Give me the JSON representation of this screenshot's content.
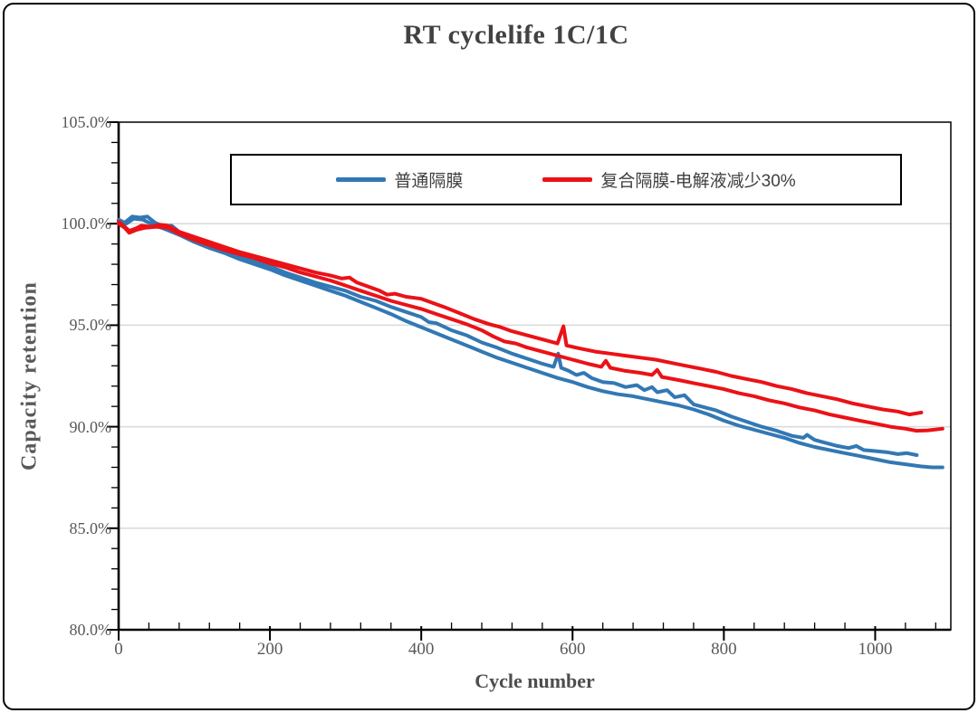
{
  "page": {
    "background": "#ffffff",
    "frame_border_color": "#000000"
  },
  "chart_data": {
    "type": "line",
    "title": "RT cyclelife 1C/1C",
    "xlabel": "Cycle number",
    "ylabel": "Capacity retention",
    "x_range": [
      0,
      1100
    ],
    "y_range_percent": [
      80,
      105
    ],
    "x_major_ticks": [
      0,
      200,
      400,
      600,
      800,
      1000
    ],
    "x_minor_unit": 40,
    "y_major_unit": 5,
    "y_minor_unit": 1,
    "y_tick_labels": [
      "105.0%",
      "100.0%",
      "95.0%",
      "90.0%",
      "85.0%",
      "80.0%"
    ],
    "grid": "horizontal-major",
    "gridline_color": "#d9d9d9",
    "axis_color": "#000000",
    "tick_label_color": "#595959",
    "title_color": "#424242",
    "legend_position": "top-center-inside",
    "series": [
      {
        "name": "普通隔膜",
        "color": "#3278b4",
        "curves": [
          [
            [
              0,
              100.2
            ],
            [
              8,
              100.05
            ],
            [
              18,
              100.35
            ],
            [
              28,
              100.3
            ],
            [
              38,
              100.35
            ],
            [
              48,
              100.05
            ],
            [
              60,
              99.85
            ],
            [
              70,
              99.9
            ],
            [
              80,
              99.6
            ],
            [
              100,
              99.25
            ],
            [
              120,
              98.95
            ],
            [
              140,
              98.7
            ],
            [
              160,
              98.4
            ],
            [
              180,
              98.15
            ],
            [
              200,
              97.9
            ],
            [
              220,
              97.6
            ],
            [
              240,
              97.35
            ],
            [
              260,
              97.1
            ],
            [
              280,
              96.9
            ],
            [
              300,
              96.7
            ],
            [
              320,
              96.4
            ],
            [
              340,
              96.2
            ],
            [
              360,
              95.9
            ],
            [
              380,
              95.65
            ],
            [
              400,
              95.4
            ],
            [
              410,
              95.15
            ],
            [
              420,
              95.1
            ],
            [
              440,
              94.75
            ],
            [
              460,
              94.5
            ],
            [
              480,
              94.15
            ],
            [
              500,
              93.9
            ],
            [
              520,
              93.6
            ],
            [
              540,
              93.35
            ],
            [
              560,
              93.1
            ],
            [
              575,
              92.95
            ],
            [
              581,
              93.6
            ],
            [
              585,
              92.9
            ],
            [
              595,
              92.75
            ],
            [
              605,
              92.55
            ],
            [
              615,
              92.65
            ],
            [
              625,
              92.4
            ],
            [
              640,
              92.2
            ],
            [
              655,
              92.15
            ],
            [
              670,
              91.95
            ],
            [
              685,
              92.05
            ],
            [
              695,
              91.8
            ],
            [
              705,
              91.95
            ],
            [
              712,
              91.7
            ],
            [
              725,
              91.8
            ],
            [
              735,
              91.45
            ],
            [
              748,
              91.55
            ],
            [
              760,
              91.1
            ],
            [
              775,
              90.95
            ],
            [
              790,
              90.8
            ],
            [
              810,
              90.5
            ],
            [
              830,
              90.25
            ],
            [
              850,
              90.0
            ],
            [
              870,
              89.8
            ],
            [
              890,
              89.55
            ],
            [
              905,
              89.45
            ],
            [
              910,
              89.6
            ],
            [
              920,
              89.35
            ],
            [
              935,
              89.2
            ],
            [
              950,
              89.05
            ],
            [
              965,
              88.95
            ],
            [
              975,
              89.05
            ],
            [
              985,
              88.85
            ],
            [
              1000,
              88.8
            ],
            [
              1015,
              88.75
            ],
            [
              1030,
              88.65
            ],
            [
              1042,
              88.7
            ],
            [
              1055,
              88.6
            ]
          ],
          [
            [
              0,
              100.15
            ],
            [
              10,
              100.0
            ],
            [
              20,
              100.25
            ],
            [
              32,
              100.2
            ],
            [
              45,
              99.95
            ],
            [
              60,
              99.75
            ],
            [
              80,
              99.45
            ],
            [
              100,
              99.1
            ],
            [
              120,
              98.8
            ],
            [
              140,
              98.55
            ],
            [
              160,
              98.25
            ],
            [
              180,
              98.0
            ],
            [
              200,
              97.75
            ],
            [
              220,
              97.45
            ],
            [
              240,
              97.2
            ],
            [
              260,
              96.95
            ],
            [
              280,
              96.7
            ],
            [
              300,
              96.45
            ],
            [
              320,
              96.15
            ],
            [
              340,
              95.85
            ],
            [
              360,
              95.55
            ],
            [
              380,
              95.2
            ],
            [
              400,
              94.9
            ],
            [
              420,
              94.6
            ],
            [
              440,
              94.3
            ],
            [
              460,
              94.0
            ],
            [
              480,
              93.7
            ],
            [
              500,
              93.4
            ],
            [
              520,
              93.15
            ],
            [
              540,
              92.9
            ],
            [
              560,
              92.65
            ],
            [
              580,
              92.4
            ],
            [
              600,
              92.2
            ],
            [
              620,
              91.95
            ],
            [
              640,
              91.75
            ],
            [
              660,
              91.6
            ],
            [
              680,
              91.5
            ],
            [
              700,
              91.35
            ],
            [
              720,
              91.2
            ],
            [
              740,
              91.05
            ],
            [
              760,
              90.85
            ],
            [
              780,
              90.6
            ],
            [
              800,
              90.3
            ],
            [
              820,
              90.05
            ],
            [
              840,
              89.85
            ],
            [
              860,
              89.65
            ],
            [
              880,
              89.45
            ],
            [
              900,
              89.2
            ],
            [
              920,
              89.0
            ],
            [
              940,
              88.85
            ],
            [
              960,
              88.7
            ],
            [
              980,
              88.55
            ],
            [
              1000,
              88.4
            ],
            [
              1020,
              88.25
            ],
            [
              1040,
              88.15
            ],
            [
              1060,
              88.05
            ],
            [
              1075,
              88.0
            ],
            [
              1089,
              88.0
            ]
          ]
        ]
      },
      {
        "name": "复合隔膜-电解液减少30%",
        "color": "#ea1217",
        "curves": [
          [
            [
              0,
              100.1
            ],
            [
              8,
              99.85
            ],
            [
              14,
              99.65
            ],
            [
              22,
              99.75
            ],
            [
              30,
              99.9
            ],
            [
              42,
              99.85
            ],
            [
              55,
              99.95
            ],
            [
              65,
              99.9
            ],
            [
              80,
              99.6
            ],
            [
              100,
              99.35
            ],
            [
              120,
              99.1
            ],
            [
              140,
              98.85
            ],
            [
              160,
              98.6
            ],
            [
              180,
              98.4
            ],
            [
              200,
              98.2
            ],
            [
              220,
              98.0
            ],
            [
              240,
              97.8
            ],
            [
              260,
              97.6
            ],
            [
              280,
              97.45
            ],
            [
              295,
              97.3
            ],
            [
              305,
              97.35
            ],
            [
              315,
              97.1
            ],
            [
              330,
              96.9
            ],
            [
              345,
              96.7
            ],
            [
              355,
              96.5
            ],
            [
              365,
              96.55
            ],
            [
              380,
              96.4
            ],
            [
              400,
              96.3
            ],
            [
              415,
              96.1
            ],
            [
              430,
              95.9
            ],
            [
              450,
              95.6
            ],
            [
              470,
              95.3
            ],
            [
              490,
              95.05
            ],
            [
              505,
              94.9
            ],
            [
              520,
              94.7
            ],
            [
              540,
              94.5
            ],
            [
              560,
              94.3
            ],
            [
              580,
              94.1
            ],
            [
              588,
              94.95
            ],
            [
              592,
              94.0
            ],
            [
              610,
              93.85
            ],
            [
              630,
              93.7
            ],
            [
              650,
              93.6
            ],
            [
              670,
              93.5
            ],
            [
              690,
              93.4
            ],
            [
              710,
              93.3
            ],
            [
              730,
              93.15
            ],
            [
              750,
              93.0
            ],
            [
              770,
              92.85
            ],
            [
              790,
              92.7
            ],
            [
              810,
              92.5
            ],
            [
              830,
              92.35
            ],
            [
              850,
              92.2
            ],
            [
              870,
              92.0
            ],
            [
              890,
              91.85
            ],
            [
              910,
              91.65
            ],
            [
              930,
              91.5
            ],
            [
              950,
              91.35
            ],
            [
              970,
              91.15
            ],
            [
              990,
              91.0
            ],
            [
              1010,
              90.85
            ],
            [
              1030,
              90.75
            ],
            [
              1045,
              90.6
            ],
            [
              1061,
              90.7
            ]
          ],
          [
            [
              0,
              100.0
            ],
            [
              8,
              99.8
            ],
            [
              14,
              99.55
            ],
            [
              24,
              99.7
            ],
            [
              35,
              99.8
            ],
            [
              50,
              99.85
            ],
            [
              65,
              99.8
            ],
            [
              80,
              99.5
            ],
            [
              100,
              99.2
            ],
            [
              120,
              98.95
            ],
            [
              140,
              98.7
            ],
            [
              160,
              98.5
            ],
            [
              180,
              98.3
            ],
            [
              200,
              98.05
            ],
            [
              220,
              97.85
            ],
            [
              240,
              97.6
            ],
            [
              260,
              97.4
            ],
            [
              280,
              97.2
            ],
            [
              300,
              96.95
            ],
            [
              320,
              96.7
            ],
            [
              340,
              96.45
            ],
            [
              360,
              96.2
            ],
            [
              380,
              96.0
            ],
            [
              400,
              95.8
            ],
            [
              420,
              95.55
            ],
            [
              440,
              95.3
            ],
            [
              460,
              95.05
            ],
            [
              480,
              94.75
            ],
            [
              495,
              94.45
            ],
            [
              510,
              94.2
            ],
            [
              525,
              94.1
            ],
            [
              540,
              93.9
            ],
            [
              560,
              93.7
            ],
            [
              580,
              93.5
            ],
            [
              600,
              93.3
            ],
            [
              620,
              93.1
            ],
            [
              638,
              92.95
            ],
            [
              644,
              93.25
            ],
            [
              650,
              92.9
            ],
            [
              670,
              92.75
            ],
            [
              690,
              92.65
            ],
            [
              705,
              92.55
            ],
            [
              712,
              92.8
            ],
            [
              718,
              92.45
            ],
            [
              740,
              92.3
            ],
            [
              760,
              92.15
            ],
            [
              780,
              92.0
            ],
            [
              800,
              91.85
            ],
            [
              820,
              91.65
            ],
            [
              840,
              91.5
            ],
            [
              860,
              91.3
            ],
            [
              880,
              91.15
            ],
            [
              900,
              90.95
            ],
            [
              920,
              90.8
            ],
            [
              940,
              90.6
            ],
            [
              960,
              90.45
            ],
            [
              980,
              90.3
            ],
            [
              1000,
              90.15
            ],
            [
              1020,
              90.0
            ],
            [
              1040,
              89.9
            ],
            [
              1055,
              89.8
            ],
            [
              1070,
              89.82
            ],
            [
              1089,
              89.9
            ]
          ]
        ]
      }
    ]
  }
}
